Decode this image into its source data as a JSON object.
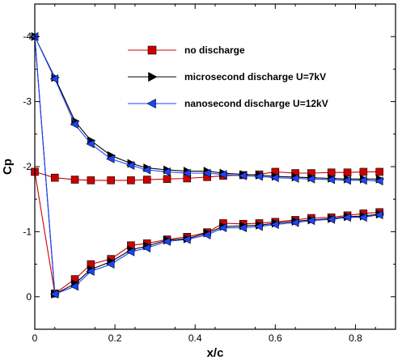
{
  "chart_data": {
    "type": "line",
    "xlabel": "x/c",
    "ylabel": "Cp",
    "xlim": [
      0,
      0.9
    ],
    "ylim": [
      0.5,
      -4.5
    ],
    "y_axis_inverted": true,
    "x_ticks": [
      0,
      0.2,
      0.4,
      0.6,
      0.8
    ],
    "x_tick_labels": [
      "0",
      "0.2",
      "0.4",
      "0.6",
      "0.8"
    ],
    "y_ticks": [
      0,
      -1,
      -2,
      -3,
      -4
    ],
    "y_tick_labels": [
      "0",
      "-1",
      "-2",
      "-3",
      "-4"
    ],
    "grid": false,
    "legend_position": "top-right",
    "series": [
      {
        "name": "no discharge",
        "color": "#cc0000",
        "marker": "square",
        "upper": {
          "x": [
            0,
            0.05,
            0.1,
            0.14,
            0.19,
            0.24,
            0.28,
            0.33,
            0.38,
            0.43,
            0.47,
            0.52,
            0.56,
            0.6,
            0.65,
            0.69,
            0.74,
            0.78,
            0.82,
            0.86
          ],
          "y": [
            -1.92,
            -1.83,
            -1.8,
            -1.79,
            -1.79,
            -1.79,
            -1.8,
            -1.81,
            -1.82,
            -1.84,
            -1.86,
            -1.87,
            -1.88,
            -1.92,
            -1.9,
            -1.9,
            -1.91,
            -1.91,
            -1.92,
            -1.92
          ]
        },
        "lower": {
          "x": [
            0,
            0.05,
            0.1,
            0.14,
            0.19,
            0.24,
            0.28,
            0.33,
            0.38,
            0.43,
            0.47,
            0.52,
            0.56,
            0.6,
            0.65,
            0.69,
            0.74,
            0.78,
            0.82,
            0.86
          ],
          "y": [
            -1.92,
            -0.05,
            -0.27,
            -0.5,
            -0.58,
            -0.79,
            -0.82,
            -0.88,
            -0.92,
            -0.99,
            -1.13,
            -1.12,
            -1.13,
            -1.15,
            -1.18,
            -1.21,
            -1.22,
            -1.25,
            -1.28,
            -1.3
          ]
        }
      },
      {
        "name": "microsecond discharge U=7kV",
        "color": "#000000",
        "marker": "triangle-right",
        "upper": {
          "x": [
            0,
            0.05,
            0.1,
            0.14,
            0.19,
            0.24,
            0.28,
            0.33,
            0.38,
            0.43,
            0.47,
            0.52,
            0.56,
            0.6,
            0.65,
            0.69,
            0.74,
            0.78,
            0.82,
            0.86
          ],
          "y": [
            -4.0,
            -3.37,
            -2.7,
            -2.4,
            -2.17,
            -2.05,
            -1.98,
            -1.95,
            -1.93,
            -1.93,
            -1.9,
            -1.88,
            -1.87,
            -1.85,
            -1.84,
            -1.83,
            -1.82,
            -1.81,
            -1.81,
            -1.81
          ]
        },
        "lower": {
          "x": [
            0,
            0.05,
            0.1,
            0.14,
            0.19,
            0.24,
            0.28,
            0.33,
            0.38,
            0.43,
            0.47,
            0.52,
            0.56,
            0.6,
            0.65,
            0.69,
            0.74,
            0.78,
            0.82,
            0.86
          ],
          "y": [
            -4.0,
            -0.04,
            -0.2,
            -0.42,
            -0.54,
            -0.72,
            -0.78,
            -0.87,
            -0.89,
            -0.98,
            -1.08,
            -1.09,
            -1.1,
            -1.13,
            -1.16,
            -1.18,
            -1.2,
            -1.23,
            -1.24,
            -1.27
          ]
        }
      },
      {
        "name": "nanosecond discharge U=12kV",
        "color": "#1a44ff",
        "marker": "triangle-left",
        "upper": {
          "x": [
            0,
            0.05,
            0.1,
            0.14,
            0.19,
            0.24,
            0.28,
            0.33,
            0.38,
            0.43,
            0.47,
            0.52,
            0.56,
            0.6,
            0.65,
            0.69,
            0.74,
            0.78,
            0.82,
            0.86
          ],
          "y": [
            -4.0,
            -3.35,
            -2.65,
            -2.35,
            -2.12,
            -2.02,
            -1.95,
            -1.92,
            -1.9,
            -1.9,
            -1.88,
            -1.86,
            -1.85,
            -1.83,
            -1.82,
            -1.81,
            -1.8,
            -1.79,
            -1.79,
            -1.78
          ]
        },
        "lower": {
          "x": [
            0,
            0.05,
            0.1,
            0.14,
            0.19,
            0.24,
            0.28,
            0.33,
            0.38,
            0.43,
            0.47,
            0.52,
            0.56,
            0.6,
            0.65,
            0.69,
            0.74,
            0.78,
            0.82,
            0.86
          ],
          "y": [
            -4.0,
            -0.04,
            -0.16,
            -0.39,
            -0.5,
            -0.69,
            -0.75,
            -0.85,
            -0.88,
            -0.95,
            -1.06,
            -1.06,
            -1.08,
            -1.11,
            -1.14,
            -1.17,
            -1.19,
            -1.22,
            -1.22,
            -1.26
          ]
        }
      }
    ]
  }
}
